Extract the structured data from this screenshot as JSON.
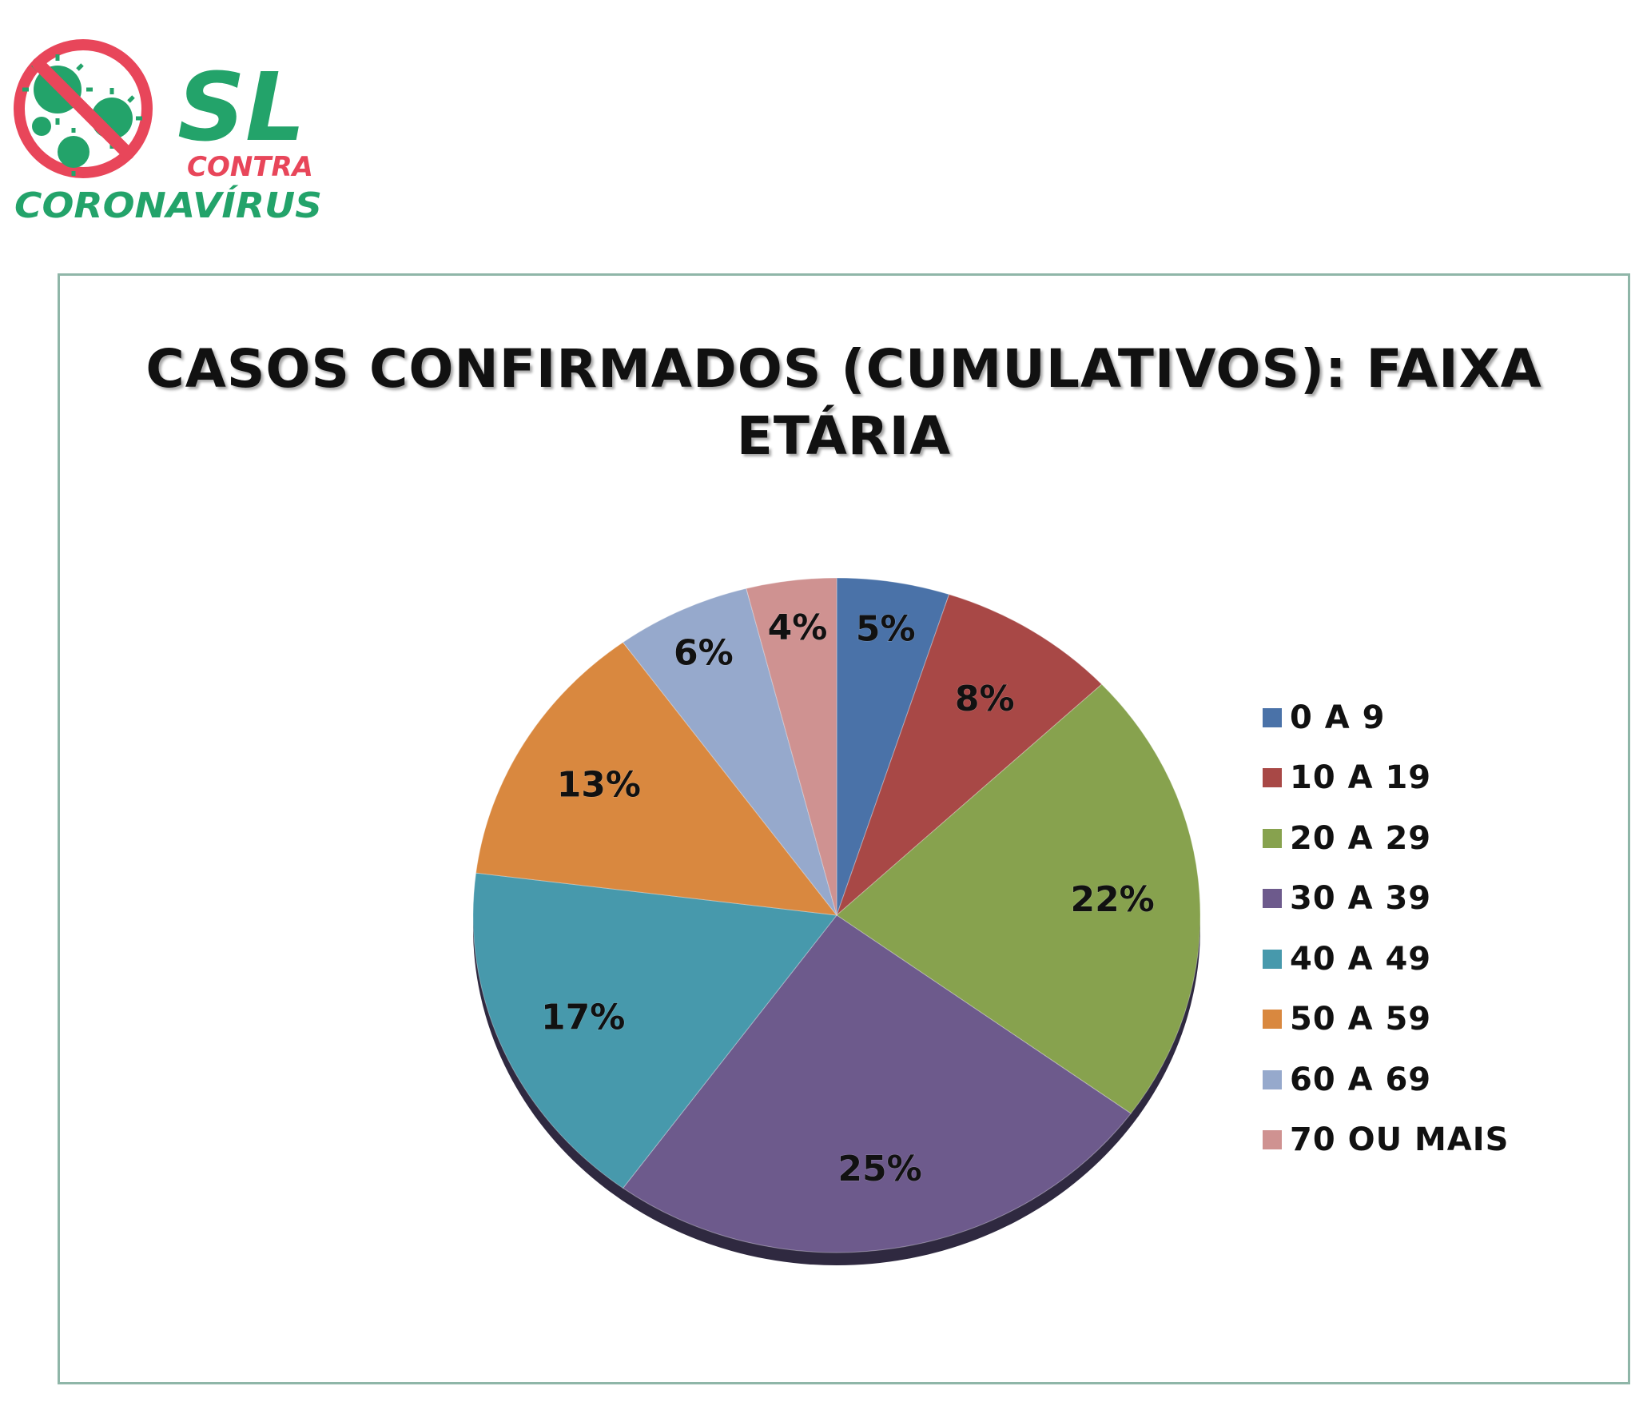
{
  "logo": {
    "line1": "SL",
    "line2": "CONTRA",
    "line3": "CORONAVÍRUS",
    "icon": "no-virus-icon",
    "colors": {
      "green": "#23a36a",
      "red": "#e8465a"
    }
  },
  "chart_data": {
    "type": "pie",
    "title": "CASOS CONFIRMADOS (CUMULATIVOS): FAIXA ETÁRIA",
    "title_lines": [
      "CASOS CONFIRMADOS (CUMULATIVOS): FAIXA",
      "ETÁRIA"
    ],
    "start": "top, clockwise",
    "legend_position": "right",
    "slices": [
      {
        "name": "0 A 9",
        "value": 5,
        "label": "5%",
        "color": "#4a72a8"
      },
      {
        "name": "10 A 19",
        "value": 8,
        "label": "8%",
        "color": "#a84846"
      },
      {
        "name": "20 A 29",
        "value": 22,
        "label": "22%",
        "color": "#87a24e"
      },
      {
        "name": "30 A 39",
        "value": 25,
        "label": "25%",
        "color": "#6d5a8c"
      },
      {
        "name": "40 A 49",
        "value": 17,
        "label": "17%",
        "color": "#4799ac"
      },
      {
        "name": "50 A 59",
        "value": 13,
        "label": "13%",
        "color": "#d9883f"
      },
      {
        "name": "60 A 69",
        "value": 6,
        "label": "6%",
        "color": "#96a9cc"
      },
      {
        "name": "70 OU MAIS",
        "value": 4,
        "label": "4%",
        "color": "#cf9291"
      }
    ]
  }
}
